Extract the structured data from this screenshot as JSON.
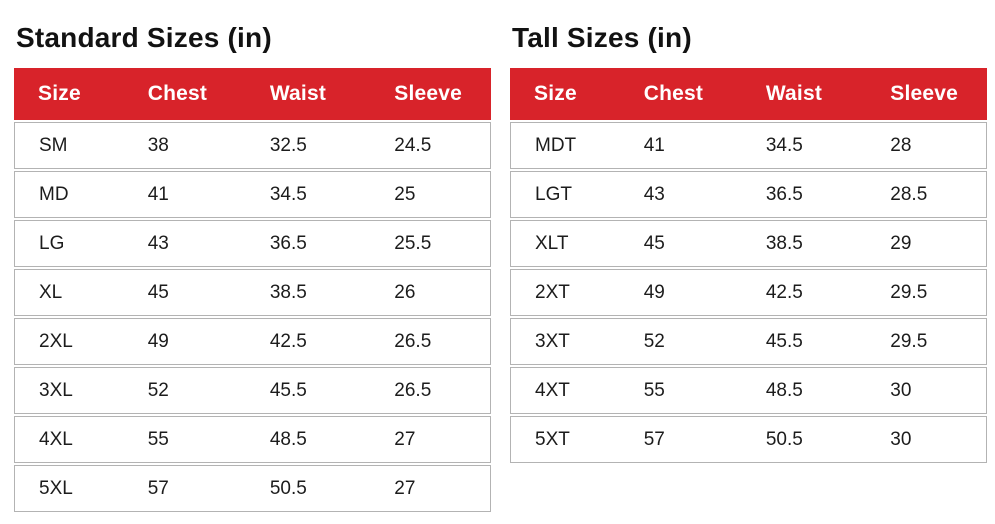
{
  "colors": {
    "header_bg": "#d8232a",
    "header_text": "#ffffff",
    "border": "#b3b3b3",
    "body_text": "#1c1c1c",
    "title_text": "#121212",
    "page_bg": "#ffffff"
  },
  "chart_data": [
    {
      "type": "table",
      "title": "Standard Sizes (in)",
      "columns": [
        "Size",
        "Chest",
        "Waist",
        "Sleeve"
      ],
      "rows": [
        [
          "SM",
          "38",
          "32.5",
          "24.5"
        ],
        [
          "MD",
          "41",
          "34.5",
          "25"
        ],
        [
          "LG",
          "43",
          "36.5",
          "25.5"
        ],
        [
          "XL",
          "45",
          "38.5",
          "26"
        ],
        [
          "2XL",
          "49",
          "42.5",
          "26.5"
        ],
        [
          "3XL",
          "52",
          "45.5",
          "26.5"
        ],
        [
          "4XL",
          "55",
          "48.5",
          "27"
        ],
        [
          "5XL",
          "57",
          "50.5",
          "27"
        ]
      ]
    },
    {
      "type": "table",
      "title": "Tall Sizes (in)",
      "columns": [
        "Size",
        "Chest",
        "Waist",
        "Sleeve"
      ],
      "rows": [
        [
          "MDT",
          "41",
          "34.5",
          "28"
        ],
        [
          "LGT",
          "43",
          "36.5",
          "28.5"
        ],
        [
          "XLT",
          "45",
          "38.5",
          "29"
        ],
        [
          "2XT",
          "49",
          "42.5",
          "29.5"
        ],
        [
          "3XT",
          "52",
          "45.5",
          "29.5"
        ],
        [
          "4XT",
          "55",
          "48.5",
          "30"
        ],
        [
          "5XT",
          "57",
          "50.5",
          "30"
        ]
      ]
    }
  ]
}
